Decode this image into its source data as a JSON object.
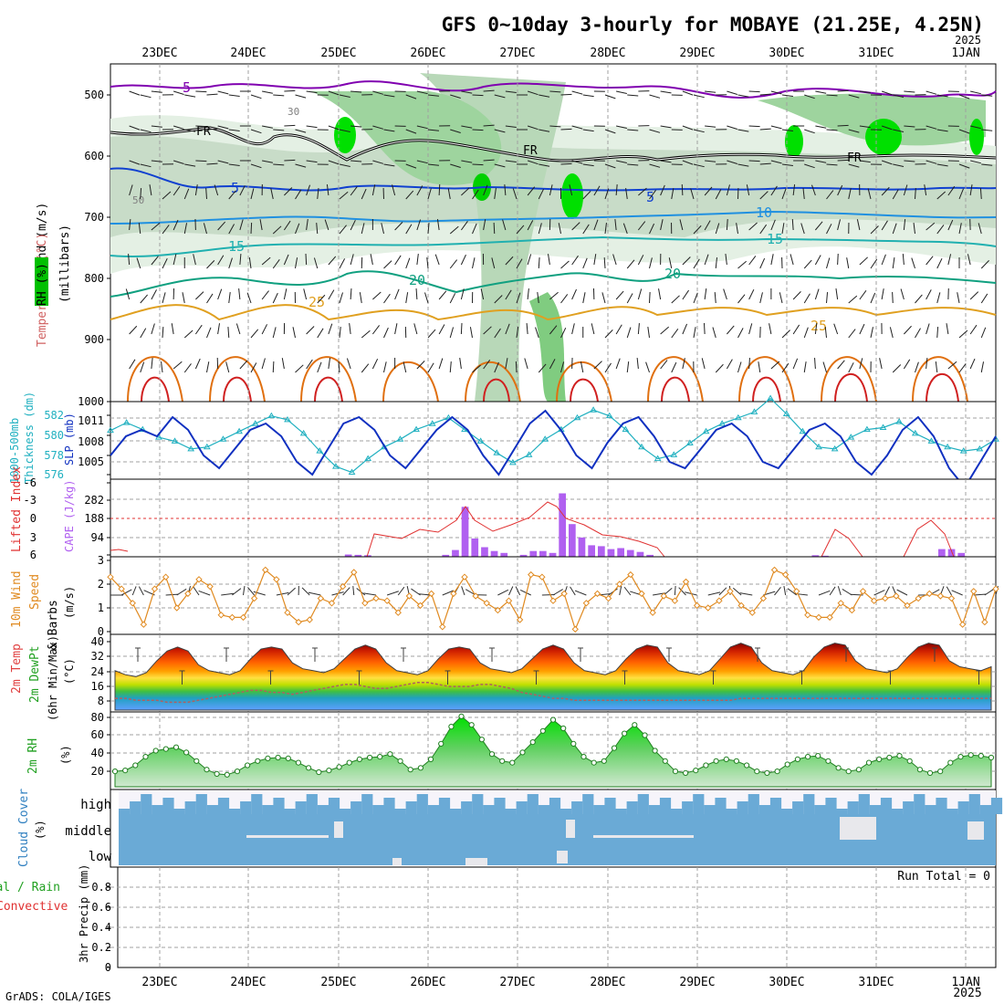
{
  "title": "GFS 0~10day 3-hourly for MOBAYE (21.25E, 4.25N)",
  "year_top": "2025",
  "credit": "GrADS: COLA/IGES",
  "dates": [
    "23DEC",
    "24DEC",
    "25DEC",
    "26DEC",
    "27DEC",
    "28DEC",
    "29DEC",
    "30DEC",
    "31DEC",
    "1JAN"
  ],
  "year_bottom": "2025",
  "colors": {
    "grid": "#a0a0a0",
    "frame": "#000000",
    "rh_green": "#00c000",
    "temp_orange": "#e08000",
    "sea": "#1030c0",
    "thick": "#20b0c0",
    "li": "#e03030",
    "cape": "#b060f0",
    "wind": "#e08a20"
  },
  "panels": {
    "upper": {
      "ylabel_parts": [
        "Wind (m/s)",
        "Temperature (°C)",
        "RH (%)",
        "(millibars)"
      ],
      "yticks": [
        "500",
        "600",
        "700",
        "800",
        "900",
        "1000"
      ],
      "contour_labels": [
        "5",
        "FR",
        "5",
        "10",
        "15",
        "20",
        "25",
        "50",
        "30"
      ]
    },
    "slp": {
      "ylabel_left": [
        "1000-500mb",
        "Thickness (dm)"
      ],
      "ylabel_right": "SLP (mb)",
      "thick_ticks": [
        "582",
        "580",
        "578",
        "576"
      ],
      "slp_ticks": [
        "1011",
        "1008",
        "1005"
      ]
    },
    "cape": {
      "ylabel_left": "Lifted Index",
      "ylabel_right": "CAPE (J/kg)",
      "li_ticks": [
        "-6",
        "-3",
        "0",
        "3",
        "6"
      ],
      "cape_ticks": [
        "282",
        "188",
        "94"
      ]
    },
    "wind10": {
      "ylabel": [
        "10m Wind",
        "Speed",
        "& Barbs"
      ],
      "unit": "(m/s)",
      "ticks": [
        "3",
        "2",
        "1",
        "0"
      ]
    },
    "temp2m": {
      "ylabel": [
        "2m Temp",
        "2m DewPt",
        "(6hr Min/Max)"
      ],
      "unit": "(°C)",
      "ticks": [
        "40",
        "32",
        "24",
        "16",
        "8"
      ]
    },
    "rh2m": {
      "ylabel": "2m RH",
      "unit": "(%)",
      "ticks": [
        "80",
        "60",
        "40",
        "20"
      ]
    },
    "cloud": {
      "ylabel": "Cloud Cover",
      "unit": "(%)",
      "levels": [
        "high",
        "middle",
        "low"
      ]
    },
    "precip": {
      "ylabel": [
        "Total / Rain",
        "Convective"
      ],
      "axis": "3hr Precip (mm)",
      "ticks": [
        "0.8",
        "0.6",
        "0.4",
        "0.2",
        "0"
      ],
      "run_total": "Run Total = 0"
    }
  },
  "chart_data": [
    {
      "type": "line",
      "name": "2m temperature (°C)",
      "x_step_hours": 3,
      "values": [
        24,
        22,
        21,
        23,
        29,
        34,
        36,
        34,
        27,
        24,
        23,
        22,
        24,
        30,
        35,
        36,
        35,
        28,
        25,
        24,
        23,
        25,
        30,
        35,
        37,
        35,
        28,
        24,
        23,
        22,
        24,
        30,
        35,
        36,
        35,
        28,
        25,
        24,
        23,
        25,
        30,
        35,
        37,
        35,
        28,
        24,
        23,
        22,
        24,
        30,
        35,
        37,
        36,
        28,
        24,
        23,
        22,
        24,
        30,
        36,
        38,
        36,
        28,
        24,
        23,
        22,
        24,
        31,
        36,
        38,
        37,
        29,
        25,
        24,
        23,
        25,
        31,
        36,
        38,
        37,
        29,
        26,
        25,
        24,
        26
      ],
      "ylim": [
        4,
        42
      ]
    },
    {
      "type": "line",
      "name": "2m dewpoint (°C)",
      "values": [
        10,
        10,
        9,
        9,
        9,
        8,
        8,
        8,
        9,
        10,
        11,
        12,
        13,
        14,
        14,
        13,
        13,
        12,
        13,
        14,
        15,
        16,
        17,
        17,
        16,
        15,
        15,
        16,
        17,
        18,
        18,
        17,
        16,
        16,
        16,
        17,
        17,
        16,
        15,
        13,
        12,
        11,
        10,
        10,
        9,
        9,
        9,
        9,
        9,
        9,
        9,
        9,
        9,
        9,
        9,
        9,
        9,
        9,
        9,
        9,
        10,
        10,
        10,
        10,
        10,
        10,
        10,
        10,
        10,
        10,
        10,
        10,
        10,
        10,
        10,
        10,
        10,
        10,
        10,
        10,
        10,
        10,
        10,
        10,
        10
      ],
      "ylim": [
        4,
        42
      ]
    },
    {
      "type": "line",
      "name": "2m RH (%)",
      "values": [
        18,
        19,
        25,
        35,
        42,
        44,
        46,
        40,
        30,
        20,
        15,
        14,
        18,
        25,
        30,
        33,
        34,
        33,
        28,
        22,
        17,
        19,
        23,
        28,
        32,
        34,
        35,
        38,
        30,
        20,
        22,
        32,
        50,
        70,
        82,
        72,
        55,
        38,
        30,
        28,
        40,
        52,
        65,
        78,
        68,
        50,
        35,
        28,
        30,
        45,
        62,
        72,
        60,
        42,
        30,
        18,
        16,
        19,
        25,
        30,
        32,
        30,
        25,
        18,
        16,
        18,
        26,
        32,
        35,
        36,
        30,
        22,
        18,
        20,
        28,
        32,
        34,
        36,
        30,
        20,
        16,
        18,
        28,
        35,
        37,
        36,
        34
      ],
      "ylim": [
        0,
        85
      ]
    },
    {
      "type": "line",
      "name": "10m wind speed (m/s)",
      "values": [
        2.3,
        1.8,
        1.2,
        0.3,
        1.8,
        2.3,
        1.0,
        1.6,
        2.2,
        1.9,
        0.7,
        0.6,
        0.6,
        1.4,
        2.6,
        2.2,
        0.8,
        0.4,
        0.5,
        1.4,
        1.2,
        1.9,
        2.5,
        1.2,
        1.4,
        1.3,
        0.8,
        1.5,
        1.1,
        1.6,
        0.2,
        1.6,
        2.3,
        1.5,
        1.2,
        0.9,
        1.3,
        0.5,
        2.4,
        2.3,
        1.3,
        1.6,
        0.1,
        1.2,
        1.6,
        1.4,
        2.0,
        2.4,
        1.6,
        0.8,
        1.5,
        1.3,
        2.1,
        1.1,
        1.0,
        1.3,
        1.7,
        1.1,
        0.8,
        1.4,
        2.6,
        2.4,
        1.7,
        0.7,
        0.6,
        0.6,
        1.2,
        0.9,
        1.7,
        1.3,
        1.4,
        1.5,
        1.1,
        1.4,
        1.6,
        1.5,
        1.4,
        0.3,
        1.7,
        0.4,
        1.8
      ],
      "ylim": [
        0,
        3
      ]
    },
    {
      "type": "line",
      "name": "SLP (mb)",
      "values": [
        1006,
        1009,
        1010,
        1009,
        1012,
        1010,
        1006,
        1004,
        1007,
        1010,
        1011,
        1009,
        1005,
        1003,
        1007,
        1011,
        1012,
        1010,
        1006,
        1004,
        1007,
        1010,
        1012,
        1010,
        1006,
        1003,
        1007,
        1011,
        1013,
        1010,
        1006,
        1004,
        1008,
        1011,
        1012,
        1009,
        1005,
        1004,
        1007,
        1010,
        1011,
        1009,
        1005,
        1004,
        1007,
        1010,
        1011,
        1009,
        1005,
        1003,
        1006,
        1010,
        1012,
        1009,
        1004,
        1001,
        1005,
        1009
      ],
      "ylim": [
        1003,
        1013
      ]
    },
    {
      "type": "line",
      "name": "1000-500mb thickness (dm)",
      "values": [
        580.5,
        581.3,
        580.6,
        579.8,
        579.4,
        578.6,
        578.8,
        579.6,
        580.4,
        581.2,
        582.0,
        581.6,
        580.2,
        578.4,
        576.8,
        576.2,
        577.6,
        578.8,
        579.6,
        580.6,
        581.2,
        581.8,
        580.6,
        579.4,
        578.2,
        577.2,
        578.0,
        579.6,
        580.6,
        581.8,
        582.6,
        582.0,
        580.6,
        578.8,
        577.6,
        578.0,
        579.2,
        580.4,
        581.2,
        581.8,
        582.4,
        583.8,
        582.2,
        580.4,
        578.8,
        578.6,
        579.8,
        580.6,
        580.8,
        581.4,
        580.2,
        579.4,
        578.8,
        578.4,
        578.6,
        579.6
      ],
      "ylim": [
        575.5,
        583
      ]
    },
    {
      "type": "bar",
      "name": "CAPE (J/kg)",
      "values": [
        0,
        0,
        0,
        0,
        0,
        0,
        0,
        0,
        0,
        0,
        0,
        0,
        0,
        0,
        0,
        0,
        0,
        0,
        0,
        0,
        0,
        0,
        0,
        0,
        12,
        10,
        8,
        0,
        0,
        0,
        0,
        0,
        0,
        0,
        10,
        35,
        260,
        95,
        50,
        30,
        20,
        0,
        10,
        30,
        30,
        20,
        330,
        170,
        100,
        60,
        55,
        40,
        45,
        35,
        25,
        10,
        0,
        0,
        0,
        0,
        0,
        0,
        0,
        0,
        0,
        0,
        0,
        0,
        0,
        0,
        0,
        0,
        8,
        5,
        0,
        0,
        0,
        0,
        0,
        0,
        0,
        0,
        0,
        0,
        0,
        40,
        40,
        20,
        0,
        0,
        0
      ],
      "ylim": [
        0,
        380
      ]
    }
  ]
}
